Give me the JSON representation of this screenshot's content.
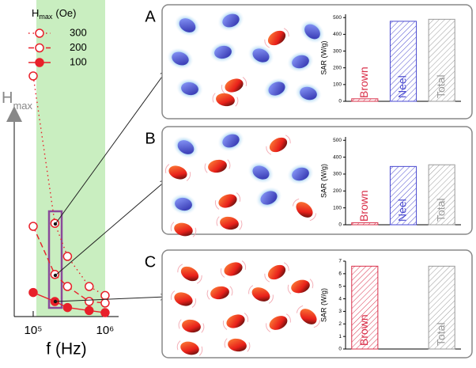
{
  "chart_data": [
    {
      "type": "line",
      "x_label": "f (Hz)",
      "y_label": [
        "H",
        "max"
      ],
      "legend_title": [
        "H",
        "max",
        "(Oe)"
      ],
      "log_x": true,
      "xlim": [
        54500,
        1540000
      ],
      "ylim": [
        0,
        105
      ],
      "xticks": [
        {
          "value": 100000,
          "label": "10⁵"
        },
        {
          "value": 1000000,
          "label": "10⁶"
        }
      ],
      "series": [
        {
          "name": "300",
          "color": "#e8202a",
          "line_style": "dotted",
          "marker": "open",
          "x": [
            100000,
            200000,
            300000,
            600000,
            1000000
          ],
          "values": [
            80,
            31,
            20,
            10,
            7
          ]
        },
        {
          "name": "200",
          "color": "#e8202a",
          "line_style": "dashed",
          "marker": "open",
          "x": [
            100000,
            200000,
            300000,
            600000,
            1000000
          ],
          "values": [
            30,
            14,
            10,
            5,
            4.5
          ]
        },
        {
          "name": "100",
          "color": "#e8202a",
          "line_style": "solid",
          "marker": "filled",
          "x": [
            100000,
            200000,
            300000,
            600000,
            1000000
          ],
          "values": [
            8,
            5,
            3,
            2,
            1.3
          ]
        }
      ]
    },
    {
      "type": "bar",
      "panel": "A",
      "y_label": "SAR (W/g)",
      "categories": [
        "Brown",
        "Neel",
        "Total"
      ],
      "values": [
        15,
        478,
        490
      ],
      "colors": [
        "#d9304a",
        "#4a4ad0",
        "#9a9a9a"
      ],
      "ylim": [
        0,
        520
      ],
      "yticks": [
        0,
        100,
        200,
        300,
        400,
        500
      ]
    },
    {
      "type": "bar",
      "panel": "B",
      "y_label": "SAR (W/g)",
      "categories": [
        "Brown",
        "Neel",
        "Total"
      ],
      "values": [
        12,
        345,
        355
      ],
      "colors": [
        "#d9304a",
        "#4a4ad0",
        "#9a9a9a"
      ],
      "ylim": [
        0,
        520
      ],
      "yticks": [
        0,
        100,
        200,
        300,
        400,
        500
      ]
    },
    {
      "type": "bar",
      "panel": "C",
      "y_label": "SAR (W/g)",
      "categories": [
        "Brown",
        null,
        "Total"
      ],
      "values": [
        6.6,
        null,
        6.6
      ],
      "colors": [
        "#d9304a",
        "#4a4ad0",
        "#9a9a9a"
      ],
      "ylim": [
        0,
        7
      ],
      "yticks": [
        0,
        1,
        2,
        3,
        4,
        5,
        6,
        7
      ]
    }
  ]
}
